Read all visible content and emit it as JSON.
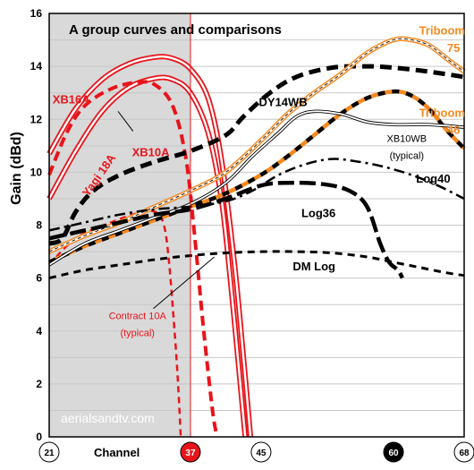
{
  "chart_data": {
    "type": "line",
    "title": "A group curves and comparisons",
    "ylabel": "Gain (dBd)",
    "xlabel": "Channel",
    "ylim": [
      0,
      16
    ],
    "xlim": [
      21,
      68
    ],
    "grid": true,
    "y_ticks": [
      0,
      2,
      4,
      6,
      8,
      10,
      12,
      14,
      16
    ],
    "x_ticks": [
      {
        "value": 21,
        "label": "21",
        "style": "plain"
      },
      {
        "value": 37,
        "label": "37",
        "style": "red"
      },
      {
        "value": 45,
        "label": "45",
        "style": "plain"
      },
      {
        "value": 60,
        "label": "60",
        "style": "black"
      },
      {
        "value": 68,
        "label": "68",
        "style": "plain"
      }
    ],
    "shaded_range": [
      21,
      37
    ],
    "marker_channel": 37,
    "watermark": "aerialsandtv.com",
    "colors": {
      "red": "#e8141b",
      "black": "#000000",
      "orange": "#f5891f",
      "grid": "#c8c8c8",
      "shade": "#d9d9d9"
    },
    "series": [
      {
        "name": "XB16A",
        "style": "red-double",
        "points": [
          [
            21,
            10.7
          ],
          [
            24,
            12.4
          ],
          [
            27,
            13.5
          ],
          [
            30,
            14.1
          ],
          [
            33,
            14.35
          ],
          [
            35,
            14.3
          ],
          [
            37,
            13.9
          ],
          [
            39,
            12.8
          ],
          [
            40.5,
            10.5
          ],
          [
            42,
            6.5
          ],
          [
            43,
            3.0
          ],
          [
            43.8,
            0
          ]
        ]
      },
      {
        "name": "Yagi 18A",
        "style": "red-double",
        "points": [
          [
            21,
            9.0
          ],
          [
            24,
            10.8
          ],
          [
            27,
            12.3
          ],
          [
            30,
            13.2
          ],
          [
            33,
            13.55
          ],
          [
            35,
            13.5
          ],
          [
            37,
            13.0
          ],
          [
            39,
            11.5
          ],
          [
            40.5,
            9.0
          ],
          [
            41.5,
            6.0
          ],
          [
            42.5,
            2.5
          ],
          [
            43.2,
            0
          ]
        ]
      },
      {
        "name": "XB10A",
        "style": "red-dashed",
        "points": [
          [
            21,
            9.9
          ],
          [
            23,
            11.5
          ],
          [
            25,
            12.5
          ],
          [
            28,
            13.15
          ],
          [
            31,
            13.4
          ],
          [
            33,
            13.3
          ],
          [
            35,
            12.5
          ],
          [
            36.5,
            10.5
          ],
          [
            37.5,
            7.5
          ],
          [
            38.5,
            4.0
          ],
          [
            39.5,
            1.0
          ],
          [
            40,
            0
          ]
        ]
      },
      {
        "name": "Contract 10A",
        "style": "red-dashed-thin",
        "points": [
          [
            21,
            6.5
          ],
          [
            24,
            7.5
          ],
          [
            28,
            8.1
          ],
          [
            31,
            8.45
          ],
          [
            33,
            8.5
          ],
          [
            34,
            8.0
          ],
          [
            34.6,
            6.5
          ],
          [
            35.2,
            4.0
          ],
          [
            35.6,
            2.0
          ],
          [
            35.9,
            0
          ]
        ]
      },
      {
        "name": "DY14WB",
        "style": "black-dashed-bold",
        "points": [
          [
            21,
            7.3
          ],
          [
            22.5,
            7.5
          ],
          [
            24,
            8.5
          ],
          [
            26,
            9.3
          ],
          [
            29,
            9.9
          ],
          [
            33,
            10.4
          ],
          [
            37,
            10.8
          ],
          [
            41,
            11.4
          ],
          [
            43,
            12.1
          ],
          [
            46,
            13.0
          ],
          [
            49,
            13.6
          ],
          [
            53,
            13.95
          ],
          [
            57,
            14.0
          ],
          [
            60,
            13.95
          ],
          [
            64,
            13.8
          ],
          [
            68,
            13.6
          ]
        ]
      },
      {
        "name": "Triboom 75",
        "style": "orange-double",
        "points": [
          [
            21,
            7.0
          ],
          [
            25,
            7.6
          ],
          [
            29,
            8.1
          ],
          [
            33,
            8.7
          ],
          [
            37,
            9.3
          ],
          [
            41,
            10.0
          ],
          [
            45,
            11.2
          ],
          [
            48,
            12.2
          ],
          [
            51,
            13.0
          ],
          [
            54,
            13.7
          ],
          [
            57,
            14.5
          ],
          [
            60,
            15.0
          ],
          [
            62,
            15.0
          ],
          [
            64,
            14.8
          ],
          [
            66,
            14.3
          ],
          [
            68,
            13.8
          ]
        ]
      },
      {
        "name": "Triboom 46",
        "style": "orange-black-dashed",
        "points": [
          [
            21,
            6.6
          ],
          [
            25,
            7.2
          ],
          [
            29,
            7.7
          ],
          [
            33,
            8.2
          ],
          [
            37,
            8.7
          ],
          [
            41,
            9.2
          ],
          [
            45,
            9.9
          ],
          [
            48,
            10.6
          ],
          [
            51,
            11.4
          ],
          [
            54,
            12.2
          ],
          [
            57,
            12.8
          ],
          [
            60,
            13.05
          ],
          [
            62,
            12.9
          ],
          [
            64,
            12.4
          ],
          [
            66,
            11.6
          ],
          [
            68,
            10.9
          ]
        ]
      },
      {
        "name": "XB10WB (typical)",
        "style": "black-double-thin",
        "points": [
          [
            21,
            6.5
          ],
          [
            25,
            7.3
          ],
          [
            29,
            7.8
          ],
          [
            33,
            8.3
          ],
          [
            37,
            8.8
          ],
          [
            41,
            9.6
          ],
          [
            44,
            10.6
          ],
          [
            47,
            11.5
          ],
          [
            49,
            12.1
          ],
          [
            51,
            12.3
          ],
          [
            54,
            12.2
          ],
          [
            57,
            11.9
          ],
          [
            60,
            11.8
          ],
          [
            64,
            11.8
          ],
          [
            68,
            11.7
          ]
        ]
      },
      {
        "name": "Log40",
        "style": "black-dashdot",
        "points": [
          [
            21,
            7.8
          ],
          [
            25,
            8.1
          ],
          [
            29,
            8.4
          ],
          [
            33,
            8.6
          ],
          [
            37,
            8.7
          ],
          [
            41,
            8.9
          ],
          [
            44,
            9.3
          ],
          [
            47,
            9.9
          ],
          [
            50,
            10.3
          ],
          [
            53,
            10.5
          ],
          [
            56,
            10.4
          ],
          [
            59,
            10.2
          ],
          [
            62,
            9.9
          ],
          [
            65,
            9.5
          ],
          [
            68,
            9.0
          ]
        ]
      },
      {
        "name": "Log36",
        "style": "black-longdash-bold",
        "points": [
          [
            21,
            7.5
          ],
          [
            25,
            7.8
          ],
          [
            29,
            8.1
          ],
          [
            33,
            8.4
          ],
          [
            37,
            8.6
          ],
          [
            41,
            9.0
          ],
          [
            45,
            9.5
          ],
          [
            48,
            9.6
          ],
          [
            52,
            9.55
          ],
          [
            55,
            9.3
          ],
          [
            57,
            8.7
          ],
          [
            58.5,
            7.3
          ],
          [
            59.5,
            6.6
          ],
          [
            60.5,
            6.3
          ],
          [
            61,
            6.0
          ]
        ]
      },
      {
        "name": "DM Log",
        "style": "black-dashed",
        "points": [
          [
            21,
            6.0
          ],
          [
            25,
            6.3
          ],
          [
            29,
            6.5
          ],
          [
            33,
            6.7
          ],
          [
            37,
            6.85
          ],
          [
            41,
            6.95
          ],
          [
            45,
            7.0
          ],
          [
            49,
            7.0
          ],
          [
            53,
            6.95
          ],
          [
            57,
            6.8
          ],
          [
            60,
            6.6
          ],
          [
            63,
            6.4
          ],
          [
            66,
            6.2
          ],
          [
            68,
            6.1
          ]
        ]
      }
    ],
    "labels": [
      {
        "text": "XB16A",
        "color": "red",
        "x": 23.5,
        "y": 12.6
      },
      {
        "text": "XB10A",
        "color": "red",
        "x": 32.5,
        "y": 10.6
      },
      {
        "text": "Yagi 18A",
        "color": "red",
        "x": 27.0,
        "y": 9.8,
        "rotate": -55
      },
      {
        "text": "DY14WB",
        "color": "black",
        "x": 47.5,
        "y": 12.5
      },
      {
        "text": "Triboom",
        "color": "orange",
        "x": 65.5,
        "y": 15.2
      },
      {
        "text": "75",
        "color": "orange",
        "x": 66.8,
        "y": 14.55
      },
      {
        "text": "Triboom",
        "color": "orange",
        "x": 65.5,
        "y": 12.1
      },
      {
        "text": "46",
        "color": "orange",
        "x": 66.8,
        "y": 11.45
      },
      {
        "text": "XB10WB",
        "color": "black",
        "x": 61.5,
        "y": 11.15,
        "small": true
      },
      {
        "text": "(typical)",
        "color": "black",
        "x": 61.5,
        "y": 10.5,
        "small": true
      },
      {
        "text": "Log40",
        "color": "black",
        "x": 64.5,
        "y": 9.6
      },
      {
        "text": "Log36",
        "color": "black",
        "x": 51.5,
        "y": 8.3
      },
      {
        "text": "DM Log",
        "color": "black",
        "x": 51.0,
        "y": 6.3
      },
      {
        "text": "Contract 10A",
        "color": "red",
        "x": 31.0,
        "y": 4.45,
        "small": true
      },
      {
        "text": "(typical)",
        "color": "red",
        "x": 31.0,
        "y": 3.8,
        "small": true
      }
    ],
    "pointer_lines": [
      {
        "from": [
          30.5,
          11.55
        ],
        "to": [
          28.8,
          12.3
        ]
      },
      {
        "from": [
          32.8,
          4.85
        ],
        "to": [
          39.7,
          6.8
        ]
      }
    ]
  }
}
